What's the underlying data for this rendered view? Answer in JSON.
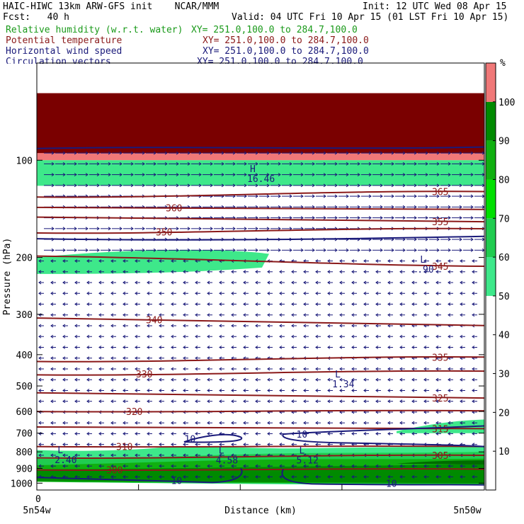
{
  "header": {
    "title": "HAIC-HIWC 13km ARW-GFS init    NCAR/MMM",
    "init": "Init: 12 UTC Wed 08 Apr 15",
    "fcst": "Fcst:   40 h",
    "valid": "Valid: 04 UTC Fri 10 Apr 15 (01 LST Fri 10 Apr 15)"
  },
  "fields": [
    {
      "label": "Relative humidity (w.r.t. water)",
      "xy": "XY= 251.0,100.0 to 284.7,100.0",
      "color": "#1a9a1a"
    },
    {
      "label": "Potential temperature",
      "xy": "XY= 251.0,100.0 to 284.7,100.0",
      "color": "#8b1a1a"
    },
    {
      "label": "Horizontal wind speed",
      "xy": "XY= 251.0,100.0 to 284.7,100.0",
      "color": "#1a1a7a"
    },
    {
      "label": "Circulation vectors",
      "xy": "XY= 251.0,100.0 to 284.7,100.0",
      "color": "#1a1a7a"
    }
  ],
  "chart_data": {
    "type": "heatmap",
    "xlabel": "Distance (km)",
    "ylabel": "Pressure (hPa)",
    "x_tick_labels": [
      "0"
    ],
    "x_end_labels": [
      "5n54w",
      "5n50w"
    ],
    "y_ticks": [
      100,
      200,
      300,
      400,
      500,
      600,
      700,
      800,
      900,
      1000
    ],
    "ylim": [
      50,
      1050
    ],
    "y_scale": "log",
    "colorbar": {
      "unit": "%",
      "levels": [
        10,
        20,
        30,
        40,
        50,
        60,
        70,
        80,
        90,
        100
      ],
      "bands": [
        {
          "from": 50,
          "to": 60,
          "color": "#3ee88a"
        },
        {
          "from": 60,
          "to": 70,
          "color": "#20cc50"
        },
        {
          "from": 70,
          "to": 80,
          "color": "#00e000"
        },
        {
          "from": 80,
          "to": 90,
          "color": "#10b010"
        },
        {
          "from": 90,
          "to": 100,
          "color": "#008a00"
        },
        {
          "from": 100,
          "to": 110,
          "color": "#f07878"
        }
      ]
    },
    "theta_isolines": [
      {
        "value": 300,
        "p_left": 910,
        "p_right": 905
      },
      {
        "value": 305,
        "p_left": 835,
        "p_right": 820
      },
      {
        "value": 310,
        "p_left": 770,
        "p_right": 770
      },
      {
        "value": 315,
        "p_left": 670,
        "p_right": 678
      },
      {
        "value": 320,
        "p_left": 600,
        "p_right": 597
      },
      {
        "value": 325,
        "p_left": 525,
        "p_right": 545
      },
      {
        "value": 330,
        "p_left": 462,
        "p_right": 450
      },
      {
        "value": 335,
        "p_left": 420,
        "p_right": 407
      },
      {
        "value": 340,
        "p_left": 308,
        "p_right": 325
      },
      {
        "value": 345,
        "p_left": 198,
        "p_right": 213
      },
      {
        "value": 350,
        "p_left": 168,
        "p_right": 163
      },
      {
        "value": 355,
        "p_left": 150,
        "p_right": 155
      },
      {
        "value": 360,
        "p_left": 140,
        "p_right": 142
      },
      {
        "value": 365,
        "p_left": 130,
        "p_right": 125
      }
    ],
    "wind_speed_labels": [
      {
        "text": "10",
        "x": 0.33,
        "p": 728
      },
      {
        "text": "10",
        "x": 0.58,
        "p": 705
      },
      {
        "text": "10",
        "x": 0.3,
        "p": 980
      },
      {
        "text": "10",
        "x": 0.78,
        "p": 1000
      }
    ],
    "extrema": [
      {
        "mark": "L",
        "value": "2.40",
        "x": 0.04,
        "p": 815
      },
      {
        "mark": "L",
        "value": "4.58",
        "x": 0.4,
        "p": 818
      },
      {
        "mark": "L",
        "value": "5.12",
        "x": 0.58,
        "p": 818
      },
      {
        "mark": "L",
        "value": "1.34",
        "x": 0.66,
        "p": 475
      },
      {
        "mark": "L",
        "value": ".90",
        "x": 0.85,
        "p": 210
      },
      {
        "mark": "H",
        "value": "16.46",
        "x": 0.47,
        "p": 110
      }
    ]
  }
}
